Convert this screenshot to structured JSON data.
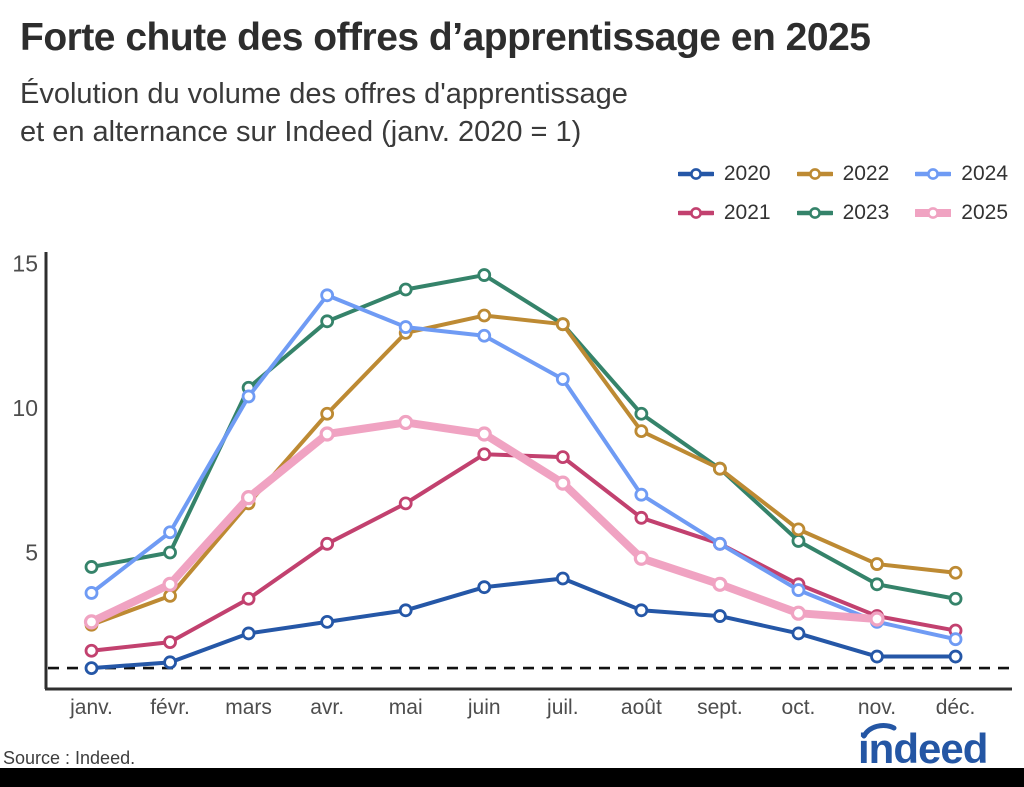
{
  "header": {
    "title": "Forte chute des offres d’apprentissage en 2025",
    "subtitle": "Évolution du volume des offres d'apprentissage\net en alternance sur Indeed (janv. 2020 = 1)"
  },
  "footer": {
    "source": "Source : Indeed.",
    "logo_text": "indeed"
  },
  "colors": {
    "axis": "#2f2f2f",
    "tick_label": "#4d4d4d",
    "baseline": "#111111",
    "brand_blue": "#2456a4"
  },
  "legend": {
    "rows": [
      [
        "2020",
        "2022",
        "2024"
      ],
      [
        "2021",
        "2023",
        "2025"
      ]
    ]
  },
  "chart_data": {
    "type": "line",
    "title": "Forte chute des offres d’apprentissage en 2025",
    "subtitle": "Évolution du volume des offres d'apprentissage et en alternance sur Indeed (janv. 2020 = 1)",
    "xlabel": "",
    "ylabel": "",
    "x": [
      "janv.",
      "févr.",
      "mars",
      "avr.",
      "mai",
      "juin",
      "juil.",
      "août",
      "sept.",
      "oct.",
      "nov.",
      "déc."
    ],
    "y_ticks": [
      5,
      10,
      15
    ],
    "ylim": [
      0,
      15.5
    ],
    "baseline": 1,
    "grid": false,
    "legend_position": "top-right",
    "series": [
      {
        "name": "2020",
        "color": "#2557a7",
        "thick": false,
        "values": [
          1.0,
          1.2,
          2.2,
          2.6,
          3.0,
          3.8,
          4.1,
          3.0,
          2.8,
          2.2,
          1.4,
          1.4
        ]
      },
      {
        "name": "2021",
        "color": "#c2416f",
        "thick": false,
        "values": [
          1.6,
          1.9,
          3.4,
          5.3,
          6.7,
          8.4,
          8.3,
          6.2,
          5.3,
          3.9,
          2.8,
          2.3
        ]
      },
      {
        "name": "2022",
        "color": "#bd8a33",
        "thick": false,
        "values": [
          2.5,
          3.5,
          6.7,
          9.8,
          12.6,
          13.2,
          12.9,
          9.2,
          7.9,
          5.8,
          4.6,
          4.3
        ]
      },
      {
        "name": "2023",
        "color": "#35836a",
        "thick": false,
        "values": [
          4.5,
          5.0,
          10.7,
          13.0,
          14.1,
          14.6,
          12.9,
          9.8,
          7.9,
          5.4,
          3.9,
          3.4
        ]
      },
      {
        "name": "2024",
        "color": "#6f9bf4",
        "thick": false,
        "values": [
          3.6,
          5.7,
          10.4,
          13.9,
          12.8,
          12.5,
          11.0,
          7.0,
          5.3,
          3.7,
          2.6,
          2.0
        ]
      },
      {
        "name": "2025",
        "color": "#f0a3c2",
        "thick": true,
        "values": [
          2.6,
          3.9,
          6.9,
          9.1,
          9.5,
          9.1,
          7.4,
          4.8,
          3.9,
          2.9,
          2.7,
          null
        ]
      }
    ],
    "draw_order": [
      "2023",
      "2022",
      "2021",
      "2024",
      "2020",
      "2025"
    ]
  }
}
